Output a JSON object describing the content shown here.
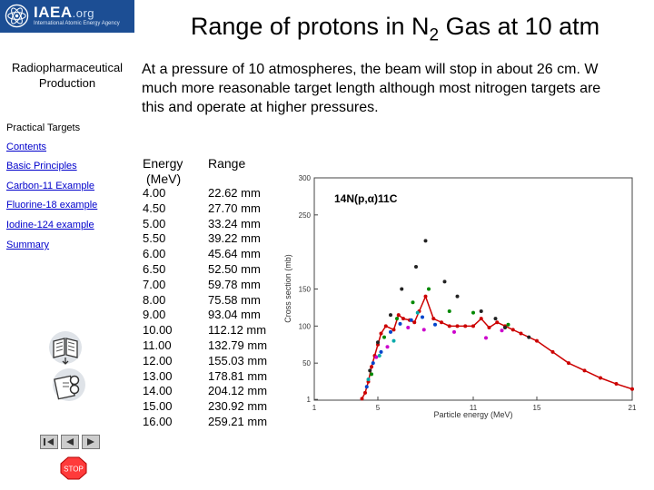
{
  "sidebar": {
    "logo": {
      "name": "IAEA",
      "org": ".org",
      "subtitle": "International Atomic Energy Agency"
    },
    "section_name": "Radiopharmaceutical Production",
    "practical_label": "Practical Targets",
    "nav_links": [
      "Contents",
      "Basic Principles",
      "Carbon-11 Example",
      "Fluorine-18 example",
      "Iodine-124 example",
      "Summary"
    ],
    "stop_label": "STOP"
  },
  "main": {
    "title_prefix": "Range of protons in N",
    "title_sub": "2",
    "title_suffix": " Gas at 10 atm",
    "intro_lines": [
      "At a pressure of 10 atmospheres, the beam will stop in about 26 cm.  W",
      "much more reasonable target length although most nitrogen targets are",
      "this and operate at higher pressures."
    ],
    "table": {
      "header_energy_line1": "Energy",
      "header_energy_line2": "(MeV)",
      "header_range": "Range",
      "energy": [
        "4.00",
        "4.50",
        "5.00",
        "5.50",
        "6.00",
        "6.50",
        "7.00",
        "8.00",
        "9.00",
        "10.00",
        "11.00",
        "12.00",
        "13.00",
        "14.00",
        "15.00",
        "16.00"
      ],
      "range": [
        "22.62 mm",
        "27.70 mm",
        "33.24 mm",
        "39.22 mm",
        "45.64 mm",
        "52.50 mm",
        "59.78 mm",
        "75.58 mm",
        "93.04 mm",
        "112.12 mm",
        "132.79 mm",
        "155.03 mm",
        "178.81 mm",
        "204.12 mm",
        "230.92 mm",
        "259.21 mm"
      ]
    }
  },
  "chart_data": {
    "type": "scatter",
    "title": "",
    "annotation": "14N(p,α)11C",
    "xlabel": "Particle energy (MeV)",
    "ylabel": "Cross section (mb)",
    "xlim": [
      1,
      21
    ],
    "ylim": [
      0,
      300
    ],
    "x_ticks": [
      "1",
      "5",
      "11",
      "15",
      "21"
    ],
    "y_ticks": [
      "1",
      "50",
      "100",
      "150",
      "250",
      "300"
    ],
    "series": [
      {
        "color": "#cc0000",
        "x": [
          4.0,
          4.2,
          4.4,
          4.6,
          4.8,
          5.0,
          5.2,
          5.5,
          6.0,
          6.3,
          6.6,
          7.0,
          7.3,
          7.6,
          8.0,
          8.5,
          9.0,
          9.5,
          10.0,
          10.5,
          11.0,
          11.5,
          12.0,
          12.5,
          13.0,
          13.5,
          14.0,
          15.0,
          16.0,
          17.0,
          18.0,
          19.0,
          20.0,
          21.0
        ],
        "y": [
          2,
          10,
          25,
          45,
          60,
          75,
          90,
          100,
          95,
          115,
          110,
          108,
          105,
          120,
          140,
          110,
          105,
          100,
          100,
          100,
          100,
          110,
          98,
          105,
          100,
          95,
          90,
          80,
          65,
          50,
          40,
          30,
          22,
          15
        ]
      },
      {
        "color": "#222222",
        "x": [
          4.5,
          5.0,
          5.8,
          6.5,
          7.4,
          8.0,
          9.2,
          10.0,
          11.5,
          12.4,
          13.0,
          14.5
        ],
        "y": [
          40,
          78,
          115,
          150,
          180,
          215,
          160,
          140,
          120,
          110,
          98,
          85
        ]
      },
      {
        "color": "#0044cc",
        "x": [
          4.3,
          4.7,
          5.2,
          5.8,
          6.4,
          7.1,
          7.8,
          8.6
        ],
        "y": [
          18,
          50,
          65,
          92,
          103,
          108,
          112,
          102
        ]
      },
      {
        "color": "#008800",
        "x": [
          4.6,
          5.4,
          6.2,
          7.2,
          8.2,
          9.5,
          11.0,
          13.2
        ],
        "y": [
          35,
          85,
          110,
          132,
          150,
          120,
          118,
          102
        ]
      },
      {
        "color": "#cc00cc",
        "x": [
          4.9,
          5.6,
          6.9,
          7.9,
          9.8,
          11.8,
          12.8
        ],
        "y": [
          58,
          72,
          98,
          95,
          92,
          84,
          94
        ]
      },
      {
        "color": "#00aaaa",
        "x": [
          4.4,
          5.1,
          6.0,
          7.5
        ],
        "y": [
          28,
          60,
          80,
          118
        ]
      }
    ]
  }
}
